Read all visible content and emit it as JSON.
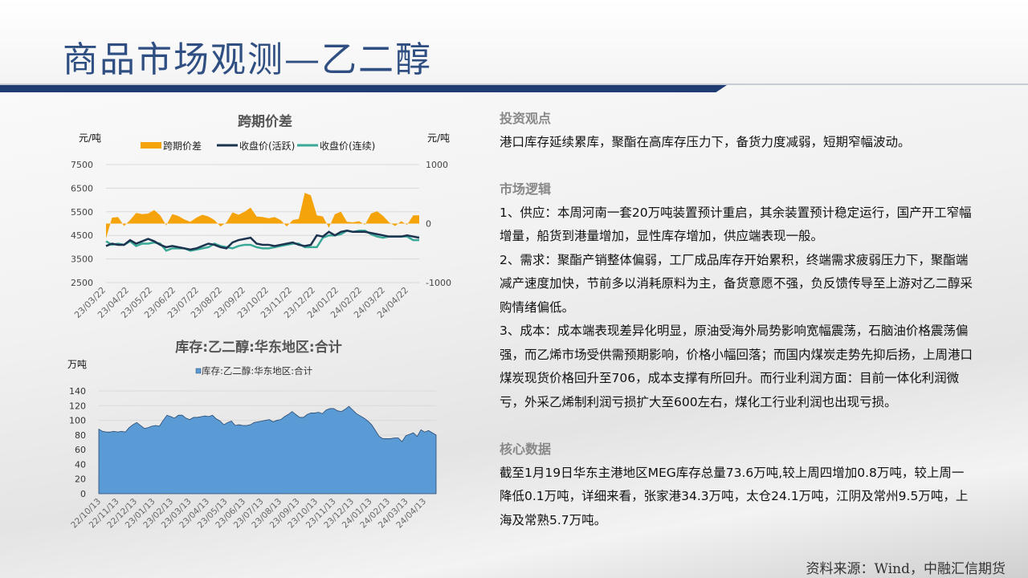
{
  "header": {
    "title": "商品市场观测—乙二醇"
  },
  "colors": {
    "title": "#2f4f82",
    "bar": "#1f3d72",
    "spread": "#f5a30a",
    "active": "#1c3350",
    "continuous": "#3aa897",
    "inventory": "#5b9bd5"
  },
  "chart_data": [
    {
      "type": "line",
      "title": "跨期价差",
      "ylabel": "元/吨",
      "y2label": "元/吨",
      "ylim": [
        2500,
        7500
      ],
      "y2lim": [
        -1000,
        1000
      ],
      "yticks": [
        "7500",
        "6500",
        "5500",
        "4500",
        "3500",
        "2500"
      ],
      "y2ticks": [
        "1000",
        "0",
        "-1000"
      ],
      "xticks": [
        "23/03/22",
        "23/04/22",
        "23/05/22",
        "23/06/22",
        "23/07/22",
        "23/08/22",
        "23/09/22",
        "23/10/22",
        "23/11/22",
        "23/12/22",
        "24/01/22",
        "24/02/22",
        "24/03/22",
        "24/04/22"
      ],
      "legend": "top",
      "grid": true,
      "series": [
        {
          "name": "跨期价差",
          "axis": "right",
          "style": "area",
          "values": [
            -250,
            100,
            110,
            -40,
            60,
            180,
            160,
            170,
            230,
            140,
            -30,
            160,
            130,
            70,
            30,
            100,
            150,
            120,
            60,
            -50,
            20,
            190,
            150,
            200,
            270,
            120,
            110,
            90,
            110,
            60,
            -50,
            60,
            80,
            520,
            480,
            140,
            120,
            -70,
            160,
            200,
            30,
            20,
            40,
            -20,
            170,
            210,
            130,
            20,
            -40,
            40,
            -20,
            140,
            140
          ]
        },
        {
          "name": "收盘价(活跃)",
          "axis": "left",
          "style": "line",
          "values": [
            4050,
            4150,
            4100,
            4100,
            4300,
            4150,
            4250,
            4350,
            4250,
            4100,
            4000,
            4050,
            4000,
            3950,
            3900,
            3950,
            4050,
            4150,
            4100,
            4000,
            3950,
            4200,
            4300,
            4350,
            4400,
            4150,
            4100,
            4100,
            4050,
            4100,
            4150,
            4200,
            4100,
            4050,
            4100,
            4500,
            4450,
            4650,
            4500,
            4650,
            4700,
            4650,
            4650,
            4650,
            4600,
            4550,
            4500,
            4450,
            4450,
            4450,
            4500,
            4450,
            4400
          ]
        },
        {
          "name": "收盘价(连续)",
          "axis": "left",
          "style": "line",
          "values": [
            4250,
            4100,
            4150,
            4100,
            4250,
            4050,
            4150,
            4150,
            4200,
            4150,
            3850,
            3950,
            3950,
            3950,
            3850,
            3900,
            3950,
            4000,
            4150,
            4050,
            4000,
            3950,
            4050,
            4100,
            4100,
            4000,
            3950,
            3950,
            4000,
            4050,
            4100,
            4150,
            4150,
            4000,
            4000,
            4000,
            4400,
            4500,
            4500,
            4550,
            4700,
            4650,
            4700,
            4700,
            4550,
            4450,
            4400,
            4450,
            4450,
            4450,
            4450,
            4300,
            4300
          ]
        }
      ]
    },
    {
      "type": "area",
      "title": "库存:乙二醇:华东地区:合计",
      "ylabel": "万吨",
      "ylim": [
        0,
        140
      ],
      "yticks": [
        "140",
        "120",
        "100",
        "80",
        "60",
        "40",
        "20",
        "0"
      ],
      "xticks": [
        "22/10/13",
        "22/11/13",
        "22/12/13",
        "23/01/13",
        "23/02/13",
        "23/03/13",
        "23/04/13",
        "23/05/13",
        "23/06/13",
        "23/07/13",
        "23/08/13",
        "23/09/13",
        "23/10/13",
        "23/11/13",
        "23/12/13",
        "24/01/13",
        "24/02/13",
        "24/03/13",
        "24/04/13"
      ],
      "legend": "top",
      "grid": true,
      "series": [
        {
          "name": "库存:乙二醇:华东地区:合计",
          "values": [
            88,
            85,
            84,
            84,
            85,
            84,
            85,
            84,
            90,
            94,
            97,
            93,
            89,
            90,
            92,
            93,
            92,
            100,
            107,
            105,
            103,
            107,
            107,
            103,
            101,
            104,
            104,
            105,
            106,
            105,
            107,
            102,
            99,
            94,
            97,
            99,
            93,
            94,
            93,
            93,
            94,
            97,
            98,
            99,
            100,
            101,
            98,
            100,
            101,
            105,
            108,
            112,
            108,
            104,
            104,
            108,
            110,
            110,
            111,
            109,
            114,
            116,
            116,
            113,
            112,
            115,
            119,
            114,
            109,
            106,
            103,
            99,
            94,
            86,
            78,
            75,
            75,
            75,
            76,
            76,
            71,
            79,
            81,
            83,
            78,
            87,
            84,
            86,
            83,
            80
          ]
        }
      ]
    }
  ],
  "right": {
    "sections": [
      {
        "heading": "投资观点",
        "paragraphs": [
          "港口库存延续累库，聚酯在高库存压力下，备货力度减弱，短期窄幅波动。"
        ]
      },
      {
        "heading": "市场逻辑",
        "paragraphs": [
          "1、供应：本周河南一套20万吨装置预计重启，其余装置预计稳定运行，国产开工窄幅增量，船货到港量增加，显性库存增加，供应端表现一般。",
          "2、需求：聚酯产销整体偏弱，工厂成品库存开始累积，终端需求疲弱压力下，聚酯端减产速度加快，节前多以消耗原料为主，备货意愿不强，负反馈传导至上游对乙二醇采购情绪偏低。",
          "3、成本：成本端表现差异化明显，原油受海外局势影响宽幅震荡，石脑油价格震荡偏强，而乙烯市场受供需预期影响，价格小幅回落；而国内煤炭走势先抑后扬，上周港口煤炭现货价格回升至706，成本支撑有所回升。而行业利润方面：目前一体化利润微亏，外采乙烯制利润亏损扩大至600左右，煤化工行业利润也出现亏损。"
        ]
      },
      {
        "heading": "核心数据",
        "paragraphs": [
          "截至1月19日华东主港地区MEG库存总量73.6万吨,较上周四增加0.8万吨，较上周一降低0.1万吨，详细来看，张家港34.3万吨，太仓24.1万吨，江阴及常州9.5万吨，上海及常熟5.7万吨。"
        ]
      }
    ]
  },
  "footer": {
    "source": "资料来源：Wind，中融汇信期货"
  }
}
